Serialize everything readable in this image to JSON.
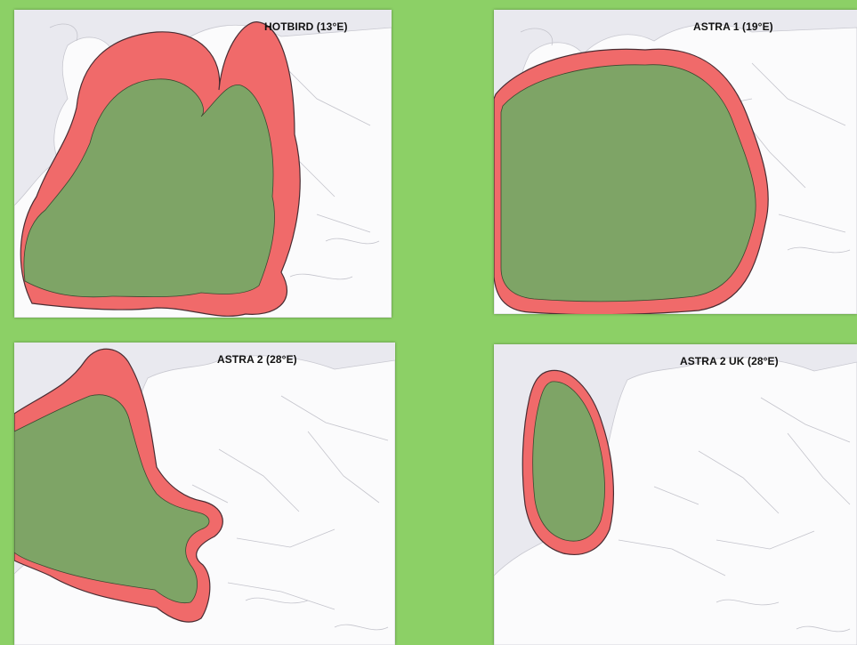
{
  "colors": {
    "background": "#8cd066",
    "map_sea": "#e9e9ef",
    "map_land": "#fbfbfc",
    "outer_zone": "#f06a6a",
    "inner_zone": "#7ea466"
  },
  "panels": [
    {
      "title": "HOTBIRD (13°E)"
    },
    {
      "title": "ASTRA 1 (19°E)"
    },
    {
      "title": "ASTRA 2 (28°E)"
    },
    {
      "title": "ASTRA 2 UK (28°E)"
    }
  ]
}
